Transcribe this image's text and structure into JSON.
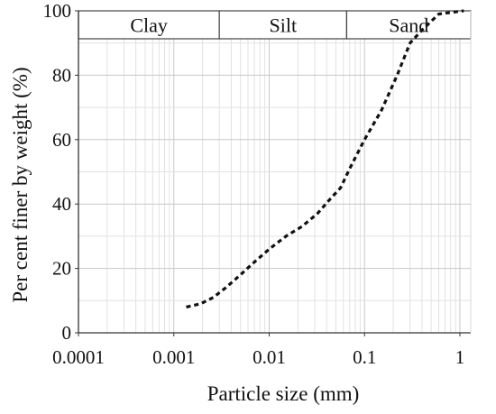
{
  "chart_data": {
    "type": "line",
    "title": "",
    "xlabel": "Particle size (mm)",
    "ylabel": "Per cent finer by weight (%)",
    "x_scale": "log",
    "xlim": [
      0.0001,
      1.3
    ],
    "ylim": [
      0,
      100
    ],
    "x_ticks": [
      0.0001,
      0.001,
      0.01,
      0.1,
      1
    ],
    "x_tick_labels": [
      "0.0001",
      "0.001",
      "0.01",
      "0.1",
      "1"
    ],
    "y_ticks": [
      0,
      20,
      40,
      60,
      80,
      100
    ],
    "y_tick_labels": [
      "0",
      "20",
      "40",
      "60",
      "80",
      "100"
    ],
    "grid": true,
    "line_style": "dashed",
    "line_color": "#111111",
    "soil_bands": [
      {
        "label": "Clay",
        "from": 0.0001,
        "to": 0.003
      },
      {
        "label": "Silt",
        "from": 0.003,
        "to": 0.065
      },
      {
        "label": "Sand",
        "from": 0.065,
        "to": 1.3
      }
    ],
    "series": [
      {
        "x": [
          0.00135,
          0.0019,
          0.0026,
          0.0035,
          0.005,
          0.007,
          0.01,
          0.015,
          0.022,
          0.032,
          0.045,
          0.056,
          0.07,
          0.1,
          0.15,
          0.22,
          0.3,
          0.4,
          0.6,
          0.8,
          1.1
        ],
        "y": [
          8,
          9,
          11,
          14,
          18,
          22,
          26,
          30,
          33,
          37,
          42,
          45,
          51,
          60,
          69,
          80,
          90,
          94,
          99,
          99.5,
          100
        ]
      }
    ]
  }
}
